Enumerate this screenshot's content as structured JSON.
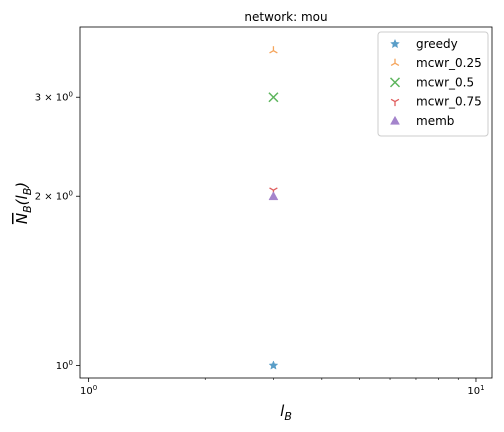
{
  "chart_data": {
    "type": "scatter",
    "title": "network: mou",
    "xlabel": "l_B",
    "ylabel": "N_B(l_B)",
    "xscale": "log",
    "yscale": "log",
    "xlim": [
      0.95,
      11
    ],
    "ylim": [
      0.95,
      4.0
    ],
    "grid": false,
    "legend_position": "top-right",
    "x_ticks": [
      {
        "value": 1,
        "base": "10",
        "exp": "0"
      },
      {
        "value": 10,
        "base": "10",
        "exp": "1"
      }
    ],
    "y_ticks": [
      {
        "value": 1,
        "label_prefix": "",
        "base": "10",
        "exp": "0"
      },
      {
        "value": 2,
        "label_prefix": "2 × ",
        "base": "10",
        "exp": "0"
      },
      {
        "value": 3,
        "label_prefix": "3 × ",
        "base": "10",
        "exp": "0"
      }
    ],
    "series": [
      {
        "name": "greedy",
        "marker": "star",
        "color": "#5a9ec8",
        "points": [
          {
            "x": 3,
            "y": 1
          }
        ]
      },
      {
        "name": "mcwr_0.25",
        "marker": "tri_left",
        "color": "#f5a55c",
        "points": [
          {
            "x": 3,
            "y": 3.63
          }
        ]
      },
      {
        "name": "mcwr_0.5",
        "marker": "x",
        "color": "#5db55d",
        "points": [
          {
            "x": 3,
            "y": 3
          }
        ]
      },
      {
        "name": "mcwr_0.75",
        "marker": "tri_down",
        "color": "#e05d5d",
        "points": [
          {
            "x": 3,
            "y": 2.05
          }
        ]
      },
      {
        "name": "memb",
        "marker": "triangle_up",
        "color": "#a484cc",
        "points": [
          {
            "x": 3,
            "y": 2
          }
        ]
      }
    ]
  }
}
